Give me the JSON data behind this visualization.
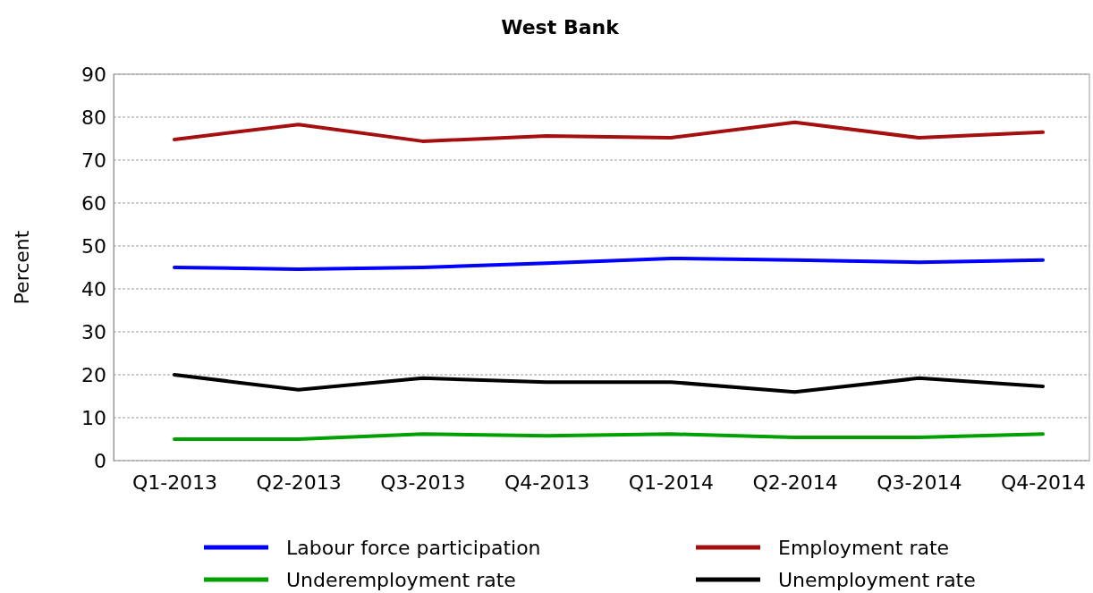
{
  "chart_data": {
    "type": "line",
    "title": "West Bank",
    "ylabel": "Percent",
    "categories": [
      "Q1-2013",
      "Q2-2013",
      "Q3-2013",
      "Q4-2013",
      "Q1-2014",
      "Q2-2014",
      "Q3-2014",
      "Q4-2014"
    ],
    "series": [
      {
        "name": "Labour force participation",
        "color": "#0000ff",
        "values": [
          45,
          44.6,
          45,
          46,
          47.1,
          46.7,
          46.2,
          46.7
        ]
      },
      {
        "name": "Employment rate",
        "color": "#a50f0f",
        "values": [
          74.8,
          78.3,
          74.4,
          75.6,
          75.2,
          78.8,
          75.2,
          76.5
        ]
      },
      {
        "name": "Underemployment rate",
        "color": "#00a000",
        "values": [
          5,
          5,
          6.2,
          5.8,
          6.2,
          5.4,
          5.4,
          6.2
        ]
      },
      {
        "name": "Unemployment rate",
        "color": "#000000",
        "values": [
          20,
          16.5,
          19.2,
          18.3,
          18.3,
          16,
          19.2,
          17.3
        ]
      }
    ],
    "ylim": [
      0,
      90
    ],
    "yticks": [
      0,
      10,
      20,
      30,
      40,
      50,
      60,
      70,
      80,
      90
    ],
    "grid": "y",
    "legend": "bottom",
    "line_style": "solid"
  }
}
